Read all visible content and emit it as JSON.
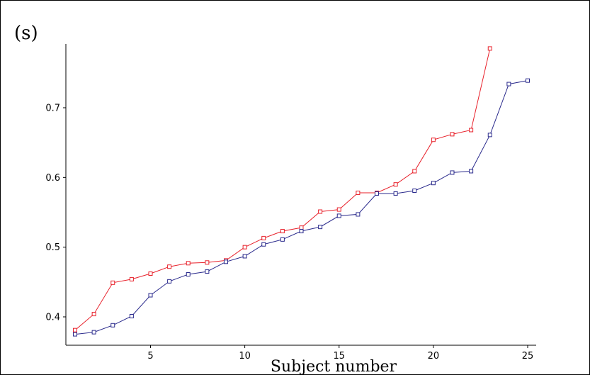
{
  "chart_data": {
    "type": "line",
    "panel_label": "(s)",
    "title": "",
    "xlabel": "Subject number",
    "ylabel": "",
    "xlim": [
      0.5,
      25.5
    ],
    "ylim": [
      0.37,
      0.79
    ],
    "xticks": [
      5,
      10,
      15,
      20,
      25
    ],
    "yticks": [
      0.4,
      0.5,
      0.6,
      0.7
    ],
    "grid": false,
    "marker": "square",
    "series": [
      {
        "color": "#e8202a",
        "x": [
          1,
          2,
          3,
          4,
          5,
          6,
          7,
          8,
          9,
          10,
          11,
          12,
          13,
          14,
          15,
          16,
          17,
          18,
          19,
          20,
          21,
          22,
          23
        ],
        "y": [
          0.381,
          0.404,
          0.449,
          0.454,
          0.462,
          0.472,
          0.477,
          0.478,
          0.481,
          0.5,
          0.513,
          0.523,
          0.528,
          0.551,
          0.554,
          0.578,
          0.578,
          0.59,
          0.609,
          0.654,
          0.662,
          0.668,
          0.785
        ]
      },
      {
        "color": "#2a2a8c",
        "x": [
          1,
          2,
          3,
          4,
          5,
          6,
          7,
          8,
          9,
          10,
          11,
          12,
          13,
          14,
          15,
          16,
          17,
          18,
          19,
          20,
          21,
          22,
          23,
          24,
          25
        ],
        "y": [
          0.375,
          0.378,
          0.388,
          0.401,
          0.431,
          0.451,
          0.461,
          0.465,
          0.479,
          0.487,
          0.504,
          0.511,
          0.523,
          0.529,
          0.545,
          0.547,
          0.577,
          0.577,
          0.581,
          0.592,
          0.607,
          0.609,
          0.661,
          0.734,
          0.739
        ]
      }
    ]
  }
}
